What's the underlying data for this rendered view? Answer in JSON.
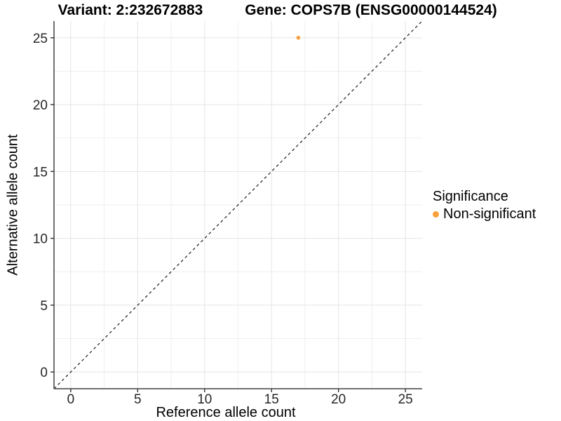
{
  "chart_data": {
    "type": "scatter",
    "title_left": "Variant: 2:232672883",
    "title_right": "Gene: COPS7B (ENSG00000144524)",
    "xlabel": "Reference allele count",
    "ylabel": "Alternative allele count",
    "xlim": [
      -1.25,
      26.25
    ],
    "ylim": [
      -1.25,
      26.25
    ],
    "x_major_ticks": [
      0,
      5,
      10,
      15,
      20,
      25
    ],
    "y_major_ticks": [
      0,
      5,
      10,
      15,
      20,
      25
    ],
    "x_minor_ticks": [
      2.5,
      7.5,
      12.5,
      17.5,
      22.5
    ],
    "y_minor_ticks": [
      2.5,
      7.5,
      12.5,
      17.5,
      22.5
    ],
    "grid": "on",
    "identity_line": {
      "style": "dashed",
      "x1": -1.25,
      "y1": -1.25,
      "x2": 26.25,
      "y2": 26.25
    },
    "series": [
      {
        "name": "Non-significant",
        "color": "#F9A03C",
        "points": [
          {
            "x": 17,
            "y": 25
          }
        ]
      }
    ],
    "legend": {
      "title": "Significance",
      "position": "right",
      "entries": [
        {
          "label": "Non-significant",
          "color": "#F9A03C"
        }
      ]
    },
    "colors": {
      "background": "#ffffff",
      "grid_major": "#e4e4e4",
      "grid_minor": "#efefef",
      "axis_line": "#404040",
      "tick_mark": "#333333",
      "tick_label": "#262626",
      "identity_line": "#1a1a1a"
    }
  }
}
